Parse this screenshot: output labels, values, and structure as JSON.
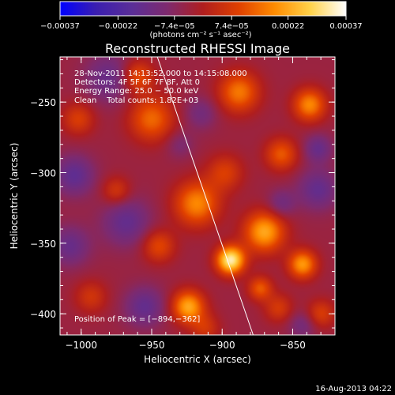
{
  "chart_data": {
    "type": "heatmap",
    "title": "Reconstructed RHESSI Image",
    "xlabel": "Heliocentric X (arcsec)",
    "ylabel": "Heliocentric Y (arcsec)",
    "xlim": [
      -1015,
      -820
    ],
    "ylim": [
      -415,
      -218
    ],
    "x_ticks": [
      {
        "value": -1000,
        "label": "−1000"
      },
      {
        "value": -950,
        "label": "−950"
      },
      {
        "value": -900,
        "label": "−900"
      },
      {
        "value": -850,
        "label": "−850"
      }
    ],
    "y_ticks": [
      {
        "value": -250,
        "label": "−250"
      },
      {
        "value": -300,
        "label": "−300"
      },
      {
        "value": -350,
        "label": "−350"
      },
      {
        "value": -400,
        "label": "−400"
      }
    ],
    "colorbar": {
      "range": [
        -0.00037,
        0.00037
      ],
      "unit_label": "(photons cm⁻² s⁻¹ asec⁻²)",
      "ticks": [
        {
          "value": -0.00037,
          "label": "−0.00037"
        },
        {
          "value": -0.00022,
          "label": "−0.00022"
        },
        {
          "value": -7.4e-05,
          "label": "−7.4e−05"
        },
        {
          "value": 7.4e-05,
          "label": "7.4e−05"
        },
        {
          "value": 0.00022,
          "label": "0.00022"
        },
        {
          "value": 0.00037,
          "label": "0.00037"
        }
      ],
      "colors": [
        "#0000ff",
        "#3a1eb0",
        "#5a2e98",
        "#7e2a6e",
        "#b01e1e",
        "#e04000",
        "#ff8c00",
        "#ffd24a",
        "#ffffff"
      ]
    },
    "annotations": {
      "time_range": "28-Nov-2011 14:13:52.000 to 14:15:08.000",
      "detectors": "Detectors: 4F 5F 6F 7F 8F, Att 0",
      "energy_range": "Energy Range: 25.0 − 50.0 keV",
      "method_counts": "Clean    Total counts: 1.82E+03",
      "peak_position": "Position of Peak = [−894,−362]"
    },
    "peak": {
      "x": -894,
      "y": -362
    },
    "limb_line": {
      "x1": -946,
      "y1": -218,
      "x2": -878,
      "y2": -415
    },
    "sources": [
      {
        "x": -894,
        "y": -362,
        "amp": 0.00037,
        "s": 7
      },
      {
        "x": -870,
        "y": -342,
        "amp": 0.00026,
        "s": 10
      },
      {
        "x": -843,
        "y": -365,
        "amp": 0.00024,
        "s": 7
      },
      {
        "x": -918,
        "y": -322,
        "amp": 0.00022,
        "s": 11
      },
      {
        "x": -924,
        "y": -395,
        "amp": 0.00026,
        "s": 8
      },
      {
        "x": -888,
        "y": -243,
        "amp": 0.0002,
        "s": 10
      },
      {
        "x": -950,
        "y": -262,
        "amp": 0.00018,
        "s": 11
      },
      {
        "x": -960,
        "y": -232,
        "amp": 0.00016,
        "s": 8
      },
      {
        "x": -838,
        "y": -252,
        "amp": 0.00022,
        "s": 8
      },
      {
        "x": -858,
        "y": -287,
        "amp": 0.00016,
        "s": 8
      },
      {
        "x": -945,
        "y": -352,
        "amp": 0.00014,
        "s": 8
      },
      {
        "x": -898,
        "y": -300,
        "amp": 0.00012,
        "s": 9
      },
      {
        "x": -975,
        "y": -313,
        "amp": 0.00011,
        "s": 7
      },
      {
        "x": -1002,
        "y": -262,
        "amp": 0.00012,
        "s": 8
      },
      {
        "x": -993,
        "y": -388,
        "amp": 0.0001,
        "s": 8
      },
      {
        "x": -860,
        "y": -396,
        "amp": 0.00011,
        "s": 7
      },
      {
        "x": -830,
        "y": -400,
        "amp": 0.00012,
        "s": 7
      },
      {
        "x": -873,
        "y": -382,
        "amp": 0.00016,
        "s": 6
      },
      {
        "x": -912,
        "y": -410,
        "amp": 0.0001,
        "s": 7
      },
      {
        "x": -980,
        "y": -233,
        "amp": -0.00011,
        "s": 12
      },
      {
        "x": -1005,
        "y": -302,
        "amp": -0.00013,
        "s": 10
      },
      {
        "x": -968,
        "y": -335,
        "amp": -0.00012,
        "s": 12
      },
      {
        "x": -1008,
        "y": -352,
        "amp": -0.00011,
        "s": 10
      },
      {
        "x": -955,
        "y": -395,
        "amp": -0.00012,
        "s": 10
      },
      {
        "x": -832,
        "y": -312,
        "amp": -0.00012,
        "s": 10
      },
      {
        "x": -832,
        "y": -283,
        "amp": -0.00011,
        "s": 7
      },
      {
        "x": -858,
        "y": -322,
        "amp": -9e-05,
        "s": 7
      },
      {
        "x": -915,
        "y": -258,
        "amp": -8e-05,
        "s": 8
      },
      {
        "x": -843,
        "y": -408,
        "amp": -8e-05,
        "s": 7
      },
      {
        "x": -930,
        "y": -280,
        "amp": -6e-05,
        "s": 7
      }
    ]
  },
  "footer": {
    "timestamp": "16-Aug-2013 04:22"
  }
}
